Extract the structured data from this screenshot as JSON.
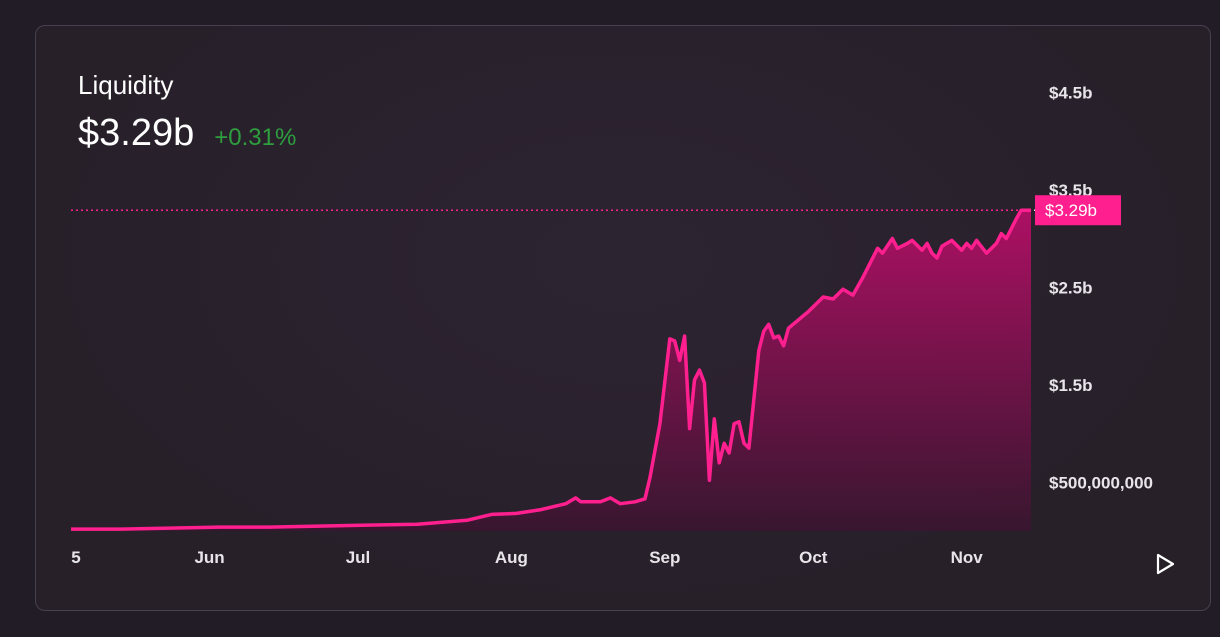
{
  "panel": {
    "title": "Liquidity",
    "value": "$3.29b",
    "change": "+0.31%"
  },
  "chart_data": {
    "type": "area",
    "title": "Liquidity",
    "xlabel": "",
    "ylabel": "",
    "x_ticks": [
      {
        "label": "5",
        "date": "2021-05-05"
      },
      {
        "label": "Jun",
        "date": "2021-06-01"
      },
      {
        "label": "Jul",
        "date": "2021-07-01"
      },
      {
        "label": "Aug",
        "date": "2021-08-01"
      },
      {
        "label": "Sep",
        "date": "2021-09-01"
      },
      {
        "label": "Oct",
        "date": "2021-10-01"
      },
      {
        "label": "Nov",
        "date": "2021-11-01"
      }
    ],
    "y_ticks": [
      {
        "label": "$500,000,000",
        "value": 500000000
      },
      {
        "label": "$1.5b",
        "value": 1500000000
      },
      {
        "label": "$2.5b",
        "value": 2500000000
      },
      {
        "label": "$3.5b",
        "value": 3500000000
      },
      {
        "label": "$4.5b",
        "value": 4500000000
      }
    ],
    "ylim": [
      0,
      4500000000
    ],
    "current": {
      "label": "$3.29b",
      "value": 3290000000
    },
    "grid": false,
    "line_color": "#ff1f8e",
    "area_gradient": [
      "#b40f66",
      "#3a1530"
    ],
    "series": [
      {
        "points": [
          [
            "2021-05-04",
            0.02
          ],
          [
            "2021-05-14",
            0.02
          ],
          [
            "2021-05-24",
            0.03
          ],
          [
            "2021-06-03",
            0.04
          ],
          [
            "2021-06-13",
            0.04
          ],
          [
            "2021-06-23",
            0.05
          ],
          [
            "2021-07-03",
            0.06
          ],
          [
            "2021-07-13",
            0.07
          ],
          [
            "2021-07-23",
            0.11
          ],
          [
            "2021-07-28",
            0.17
          ],
          [
            "2021-08-02",
            0.18
          ],
          [
            "2021-08-07",
            0.22
          ],
          [
            "2021-08-12",
            0.28
          ],
          [
            "2021-08-14",
            0.34
          ],
          [
            "2021-08-15",
            0.3
          ],
          [
            "2021-08-19",
            0.3
          ],
          [
            "2021-08-21",
            0.34
          ],
          [
            "2021-08-23",
            0.28
          ],
          [
            "2021-08-26",
            0.3
          ],
          [
            "2021-08-28",
            0.33
          ],
          [
            "2021-08-29",
            0.55
          ],
          [
            "2021-08-31",
            1.1
          ],
          [
            "2021-09-02",
            1.97
          ],
          [
            "2021-09-03",
            1.95
          ],
          [
            "2021-09-04",
            1.75
          ],
          [
            "2021-09-05",
            2.0
          ],
          [
            "2021-09-06",
            1.05
          ],
          [
            "2021-09-07",
            1.55
          ],
          [
            "2021-09-08",
            1.65
          ],
          [
            "2021-09-09",
            1.52
          ],
          [
            "2021-09-10",
            0.52
          ],
          [
            "2021-09-11",
            1.15
          ],
          [
            "2021-09-12",
            0.7
          ],
          [
            "2021-09-13",
            0.9
          ],
          [
            "2021-09-14",
            0.8
          ],
          [
            "2021-09-15",
            1.1
          ],
          [
            "2021-09-16",
            1.12
          ],
          [
            "2021-09-17",
            0.9
          ],
          [
            "2021-09-18",
            0.85
          ],
          [
            "2021-09-20",
            1.85
          ],
          [
            "2021-09-21",
            2.05
          ],
          [
            "2021-09-22",
            2.12
          ],
          [
            "2021-09-23",
            1.98
          ],
          [
            "2021-09-24",
            2.0
          ],
          [
            "2021-09-25",
            1.9
          ],
          [
            "2021-09-26",
            2.08
          ],
          [
            "2021-09-30",
            2.25
          ],
          [
            "2021-10-03",
            2.4
          ],
          [
            "2021-10-05",
            2.38
          ],
          [
            "2021-10-07",
            2.48
          ],
          [
            "2021-10-09",
            2.42
          ],
          [
            "2021-10-11",
            2.6
          ],
          [
            "2021-10-14",
            2.9
          ],
          [
            "2021-10-15",
            2.85
          ],
          [
            "2021-10-17",
            3.0
          ],
          [
            "2021-10-18",
            2.9
          ],
          [
            "2021-10-20",
            2.95
          ],
          [
            "2021-10-21",
            2.98
          ],
          [
            "2021-10-23",
            2.88
          ],
          [
            "2021-10-24",
            2.95
          ],
          [
            "2021-10-25",
            2.85
          ],
          [
            "2021-10-26",
            2.8
          ],
          [
            "2021-10-27",
            2.92
          ],
          [
            "2021-10-29",
            2.98
          ],
          [
            "2021-10-31",
            2.88
          ],
          [
            "2021-11-01",
            2.95
          ],
          [
            "2021-11-02",
            2.9
          ],
          [
            "2021-11-03",
            2.98
          ],
          [
            "2021-11-05",
            2.85
          ],
          [
            "2021-11-07",
            2.95
          ],
          [
            "2021-11-08",
            3.05
          ],
          [
            "2021-11-09",
            3.0
          ],
          [
            "2021-11-11",
            3.2
          ],
          [
            "2021-11-12",
            3.29
          ],
          [
            "2021-11-14",
            3.29
          ]
        ]
      }
    ]
  },
  "controls": {
    "play_icon": "play-icon"
  }
}
